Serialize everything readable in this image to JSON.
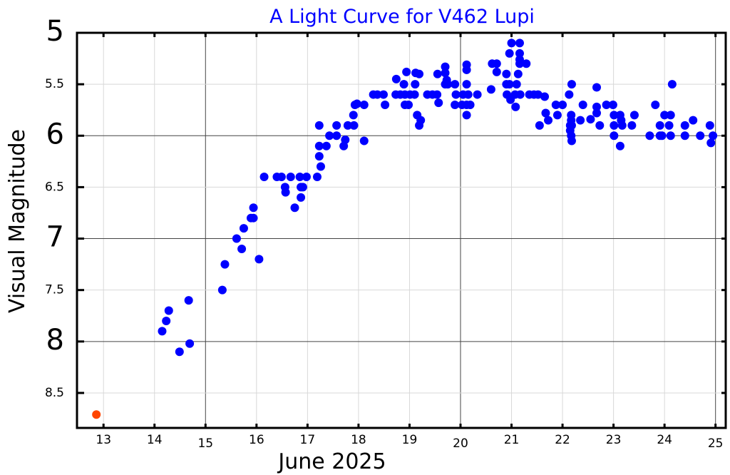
{
  "chart_data": {
    "type": "scatter",
    "title": "A Light Curve for V462 Lupi",
    "xlabel": "June 2025",
    "ylabel": "Visual Magnitude",
    "xlim": [
      12.48,
      25.2
    ],
    "ylim": [
      8.84,
      5.0
    ],
    "y_inverted": true,
    "grid": true,
    "x_ticks": [
      {
        "value": 13,
        "label": "13",
        "major": false
      },
      {
        "value": 14,
        "label": "14",
        "major": false
      },
      {
        "value": 15,
        "label": "15",
        "major": true
      },
      {
        "value": 16,
        "label": "16",
        "major": false
      },
      {
        "value": 17,
        "label": "17",
        "major": false
      },
      {
        "value": 18,
        "label": "18",
        "major": false
      },
      {
        "value": 19,
        "label": "19",
        "major": false
      },
      {
        "value": 20,
        "label": "20",
        "major": true
      },
      {
        "value": 21,
        "label": "21",
        "major": false
      },
      {
        "value": 22,
        "label": "22",
        "major": false
      },
      {
        "value": 23,
        "label": "23",
        "major": false
      },
      {
        "value": 24,
        "label": "24",
        "major": false
      },
      {
        "value": 25,
        "label": "25",
        "major": true
      }
    ],
    "y_ticks": [
      {
        "value": 5,
        "label": "5",
        "major": true
      },
      {
        "value": 5.5,
        "label": "5.5",
        "major": false
      },
      {
        "value": 6,
        "label": "6",
        "major": true
      },
      {
        "value": 6.5,
        "label": "6.5",
        "major": false
      },
      {
        "value": 7,
        "label": "7",
        "major": true
      },
      {
        "value": 7.5,
        "label": "7.5",
        "major": false
      },
      {
        "value": 8,
        "label": "8",
        "major": true
      },
      {
        "value": 8.5,
        "label": "8.5",
        "major": false
      }
    ],
    "series": [
      {
        "color": "#ff4500",
        "points": [
          [
            12.86,
            8.71
          ]
        ]
      },
      {
        "color": "#0000ff",
        "points": [
          [
            14.15,
            7.9
          ],
          [
            14.23,
            7.8
          ],
          [
            14.28,
            7.7
          ],
          [
            14.49,
            8.1
          ],
          [
            14.67,
            7.6
          ],
          [
            14.69,
            8.02
          ],
          [
            15.33,
            7.5
          ],
          [
            15.38,
            7.25
          ],
          [
            15.61,
            7.0
          ],
          [
            15.71,
            7.1
          ],
          [
            15.75,
            6.9
          ],
          [
            15.89,
            6.8
          ],
          [
            15.94,
            6.8
          ],
          [
            15.94,
            6.7
          ],
          [
            16.05,
            7.2
          ],
          [
            16.15,
            6.4
          ],
          [
            16.4,
            6.4
          ],
          [
            16.49,
            6.4
          ],
          [
            16.67,
            6.4
          ],
          [
            16.56,
            6.5
          ],
          [
            16.57,
            6.55
          ],
          [
            16.75,
            6.7
          ],
          [
            16.87,
            6.6
          ],
          [
            16.87,
            6.5
          ],
          [
            16.91,
            6.5
          ],
          [
            16.85,
            6.4
          ],
          [
            16.98,
            6.4
          ],
          [
            17.19,
            6.4
          ],
          [
            17.26,
            6.3
          ],
          [
            17.23,
            6.2
          ],
          [
            17.23,
            6.1
          ],
          [
            17.37,
            6.1
          ],
          [
            17.23,
            5.9
          ],
          [
            17.43,
            6.0
          ],
          [
            17.57,
            6.0
          ],
          [
            17.57,
            5.9
          ],
          [
            17.71,
            6.1
          ],
          [
            17.74,
            6.04
          ],
          [
            17.79,
            5.9
          ],
          [
            17.91,
            5.9
          ],
          [
            17.9,
            5.8
          ],
          [
            17.93,
            5.7
          ],
          [
            17.97,
            5.69
          ],
          [
            18.11,
            6.05
          ],
          [
            18.11,
            5.7
          ],
          [
            18.29,
            5.6
          ],
          [
            18.37,
            5.6
          ],
          [
            18.49,
            5.6
          ],
          [
            18.52,
            5.7
          ],
          [
            18.74,
            5.45
          ],
          [
            18.73,
            5.6
          ],
          [
            18.82,
            5.6
          ],
          [
            18.91,
            5.6
          ],
          [
            19.01,
            5.6
          ],
          [
            19.1,
            5.6
          ],
          [
            18.89,
            5.5
          ],
          [
            19.11,
            5.5
          ],
          [
            18.94,
            5.38
          ],
          [
            19.12,
            5.39
          ],
          [
            19.19,
            5.4
          ],
          [
            18.91,
            5.7
          ],
          [
            18.98,
            5.7
          ],
          [
            19.15,
            5.8
          ],
          [
            19.22,
            5.85
          ],
          [
            19.19,
            5.9
          ],
          [
            19.35,
            5.6
          ],
          [
            19.45,
            5.6
          ],
          [
            19.54,
            5.6
          ],
          [
            19.57,
            5.68
          ],
          [
            19.55,
            5.4
          ],
          [
            19.7,
            5.33
          ],
          [
            19.7,
            5.39
          ],
          [
            19.73,
            5.46
          ],
          [
            19.7,
            5.5
          ],
          [
            19.75,
            5.5
          ],
          [
            19.89,
            5.5
          ],
          [
            19.91,
            5.6
          ],
          [
            19.89,
            5.7
          ],
          [
            20.12,
            5.31
          ],
          [
            20.12,
            5.36
          ],
          [
            20.12,
            5.5
          ],
          [
            20.05,
            5.6
          ],
          [
            20.15,
            5.6
          ],
          [
            20.03,
            5.7
          ],
          [
            20.12,
            5.7
          ],
          [
            20.19,
            5.7
          ],
          [
            20.12,
            5.8
          ],
          [
            20.33,
            5.6
          ],
          [
            20.6,
            5.55
          ],
          [
            20.62,
            5.3
          ],
          [
            20.71,
            5.3
          ],
          [
            20.71,
            5.38
          ],
          [
            21.0,
            5.1
          ],
          [
            21.16,
            5.1
          ],
          [
            20.96,
            5.2
          ],
          [
            21.16,
            5.2
          ],
          [
            21.16,
            5.26
          ],
          [
            21.16,
            5.3
          ],
          [
            21.29,
            5.3
          ],
          [
            20.9,
            5.4
          ],
          [
            21.13,
            5.4
          ],
          [
            20.9,
            5.5
          ],
          [
            20.96,
            5.5
          ],
          [
            21.1,
            5.5
          ],
          [
            20.91,
            5.6
          ],
          [
            20.98,
            5.65
          ],
          [
            21.08,
            5.72
          ],
          [
            21.17,
            5.6
          ],
          [
            21.07,
            5.6
          ],
          [
            21.35,
            5.6
          ],
          [
            21.44,
            5.6
          ],
          [
            21.52,
            5.6
          ],
          [
            21.65,
            5.62
          ],
          [
            21.67,
            5.78
          ],
          [
            21.55,
            5.9
          ],
          [
            21.72,
            5.85
          ],
          [
            21.87,
            5.7
          ],
          [
            22.0,
            5.7
          ],
          [
            21.9,
            5.8
          ],
          [
            22.18,
            5.5
          ],
          [
            22.13,
            5.6
          ],
          [
            22.17,
            5.8
          ],
          [
            22.17,
            5.85
          ],
          [
            22.15,
            5.9
          ],
          [
            22.18,
            5.9
          ],
          [
            22.15,
            5.95
          ],
          [
            22.17,
            6.0
          ],
          [
            22.18,
            6.05
          ],
          [
            22.35,
            5.85
          ],
          [
            22.4,
            5.7
          ],
          [
            22.55,
            5.84
          ],
          [
            22.67,
            5.53
          ],
          [
            22.67,
            5.72
          ],
          [
            22.67,
            5.78
          ],
          [
            22.73,
            5.9
          ],
          [
            22.86,
            5.7
          ],
          [
            22.99,
            5.7
          ],
          [
            23.01,
            5.8
          ],
          [
            23.13,
            5.8
          ],
          [
            23.01,
            5.9
          ],
          [
            23.17,
            5.9
          ],
          [
            23.15,
            5.85
          ],
          [
            23.01,
            6.0
          ],
          [
            23.13,
            6.1
          ],
          [
            23.36,
            5.9
          ],
          [
            23.41,
            5.8
          ],
          [
            23.71,
            6.0
          ],
          [
            23.82,
            5.7
          ],
          [
            23.91,
            5.9
          ],
          [
            23.91,
            6.0
          ],
          [
            23.95,
            6.0
          ],
          [
            24.0,
            5.8
          ],
          [
            24.12,
            5.8
          ],
          [
            24.09,
            5.9
          ],
          [
            24.12,
            6.0
          ],
          [
            24.15,
            5.5
          ],
          [
            24.4,
            5.9
          ],
          [
            24.4,
            6.0
          ],
          [
            24.56,
            5.85
          ],
          [
            24.7,
            6.0
          ],
          [
            24.89,
            5.9
          ],
          [
            24.95,
            6.0
          ],
          [
            24.91,
            6.07
          ]
        ]
      }
    ]
  }
}
